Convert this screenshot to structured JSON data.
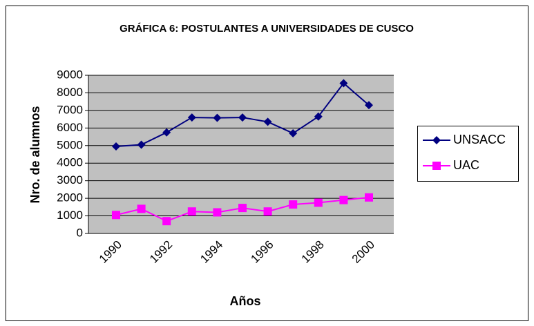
{
  "chart_data": {
    "type": "line",
    "title": "GRÁFICA 6: POSTULANTES A UNIVERSIDADES DE CUSCO",
    "x_label": "Años",
    "y_label": "Nro. de alumnos",
    "categories": [
      "1990",
      null,
      "1992",
      null,
      "1994",
      null,
      "1996",
      null,
      "1998",
      null,
      "2000"
    ],
    "series": [
      {
        "name": "UNSACC",
        "color": "#000080",
        "marker": "diamond",
        "values": [
          4950,
          5050,
          5750,
          6600,
          6580,
          6600,
          6350,
          5700,
          6650,
          8550,
          7300
        ]
      },
      {
        "name": "UAC",
        "color": "#ff00ff",
        "marker": "square",
        "values": [
          1050,
          1400,
          700,
          1250,
          1200,
          1450,
          1250,
          1650,
          1750,
          1900,
          2050
        ]
      }
    ],
    "ylim": [
      0,
      9000
    ],
    "yticks": [
      0,
      1000,
      2000,
      3000,
      4000,
      5000,
      6000,
      7000,
      8000,
      9000
    ],
    "grid": true,
    "legend": "right"
  }
}
